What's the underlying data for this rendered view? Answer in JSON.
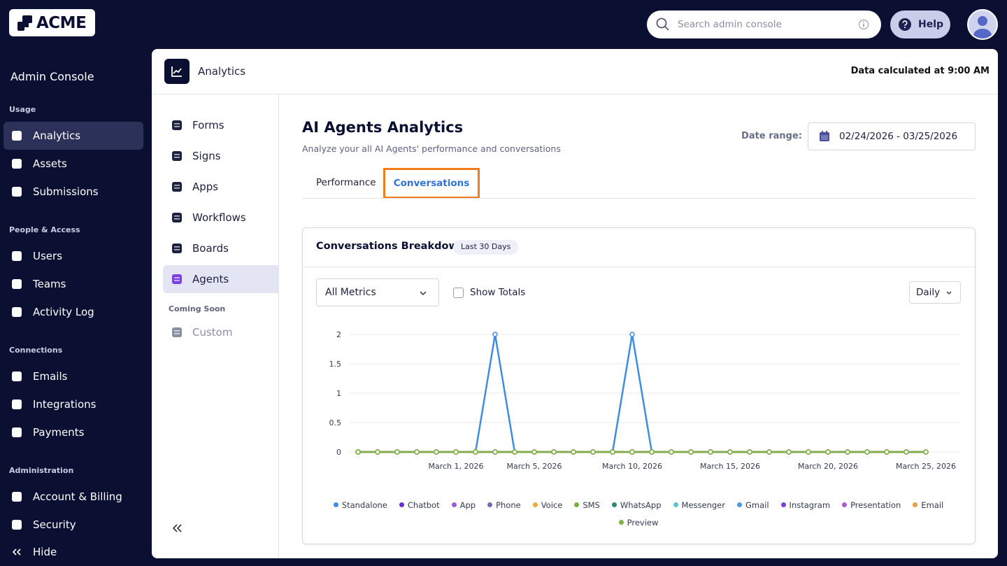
{
  "header": {
    "logo": "ACME",
    "search_placeholder": "Search admin console",
    "help": "Help"
  },
  "sidebar": {
    "title": "Admin Console",
    "sections": [
      {
        "label": "Usage",
        "items": [
          "Analytics",
          "Assets",
          "Submissions"
        ]
      },
      {
        "label": "People & Access",
        "items": [
          "Users",
          "Teams",
          "Activity Log"
        ]
      },
      {
        "label": "Connections",
        "items": [
          "Emails",
          "Integrations",
          "Payments"
        ]
      },
      {
        "label": "Administration",
        "items": [
          "Account & Billing",
          "Security"
        ]
      }
    ],
    "collapse": "Hide"
  },
  "panel": {
    "title": "Analytics",
    "status": "Data calculated at 9:00 AM",
    "subnav": [
      "Forms",
      "Signs",
      "Apps",
      "Workflows",
      "Boards",
      "Agents"
    ],
    "coming_soon": {
      "label": "Coming Soon",
      "items": [
        "Custom"
      ]
    }
  },
  "page": {
    "title": "AI Agents Analytics",
    "subtitle": "Analyze your all AI Agents' performance and conversations",
    "date_range_label": "Date range:",
    "date_range": "02/24/2026 - 03/25/2026",
    "tabs": [
      "Performance",
      "Conversations"
    ]
  },
  "card": {
    "title": "Conversations Breakdown",
    "badge": "Last 30 Days",
    "metric_select": "All Metrics",
    "show_totals": "Show Totals",
    "interval": "Daily"
  },
  "chart_data": {
    "type": "line",
    "x": [
      "2026-02-24",
      "2026-02-25",
      "2026-02-26",
      "2026-02-27",
      "2026-02-28",
      "2026-03-01",
      "2026-03-02",
      "2026-03-03",
      "2026-03-04",
      "2026-03-05",
      "2026-03-06",
      "2026-03-07",
      "2026-03-08",
      "2026-03-09",
      "2026-03-10",
      "2026-03-11",
      "2026-03-12",
      "2026-03-13",
      "2026-03-14",
      "2026-03-15",
      "2026-03-16",
      "2026-03-17",
      "2026-03-18",
      "2026-03-19",
      "2026-03-20",
      "2026-03-21",
      "2026-03-22",
      "2026-03-23",
      "2026-03-24",
      "2026-03-25"
    ],
    "xlim": [
      "2026-02-24",
      "2026-03-25"
    ],
    "xticks": [
      {
        "value": "2026-03-01",
        "label": "March 1, 2026"
      },
      {
        "value": "2026-03-05",
        "label": "March 5, 2026"
      },
      {
        "value": "2026-03-10",
        "label": "March 10, 2026"
      },
      {
        "value": "2026-03-15",
        "label": "March 15, 2026"
      },
      {
        "value": "2026-03-20",
        "label": "March 20, 2026"
      },
      {
        "value": "2026-03-25",
        "label": "March 25, 2026"
      }
    ],
    "ylim": [
      0,
      2
    ],
    "yticks": [
      0,
      0.5,
      1,
      1.5,
      2
    ],
    "grid": true,
    "series": [
      {
        "name": "Standalone",
        "color": "#3d8de0",
        "values": [
          0,
          0,
          0,
          0,
          0,
          0,
          0,
          2,
          0,
          0,
          0,
          0,
          0,
          0,
          2,
          0,
          0,
          0,
          0,
          0,
          0,
          0,
          0,
          0,
          0,
          0,
          0,
          0,
          0,
          0
        ]
      },
      {
        "name": "Chatbot",
        "color": "#6a2fd3",
        "values": [
          0,
          0,
          0,
          0,
          0,
          0,
          0,
          0,
          0,
          0,
          0,
          0,
          0,
          0,
          0,
          0,
          0,
          0,
          0,
          0,
          0,
          0,
          0,
          0,
          0,
          0,
          0,
          0,
          0,
          0
        ]
      },
      {
        "name": "App",
        "color": "#9a5bd8",
        "values": [
          0,
          0,
          0,
          0,
          0,
          0,
          0,
          0,
          0,
          0,
          0,
          0,
          0,
          0,
          0,
          0,
          0,
          0,
          0,
          0,
          0,
          0,
          0,
          0,
          0,
          0,
          0,
          0,
          0,
          0
        ]
      },
      {
        "name": "Phone",
        "color": "#6c70ad",
        "values": [
          0,
          0,
          0,
          0,
          0,
          0,
          0,
          0,
          0,
          0,
          0,
          0,
          0,
          0,
          0,
          0,
          0,
          0,
          0,
          0,
          0,
          0,
          0,
          0,
          0,
          0,
          0,
          0,
          0,
          0
        ]
      },
      {
        "name": "Voice",
        "color": "#f2a93b",
        "values": [
          0,
          0,
          0,
          0,
          0,
          0,
          0,
          0,
          0,
          0,
          0,
          0,
          0,
          0,
          0,
          0,
          0,
          0,
          0,
          0,
          0,
          0,
          0,
          0,
          0,
          0,
          0,
          0,
          0,
          0
        ]
      },
      {
        "name": "SMS",
        "color": "#74b23c",
        "values": [
          0,
          0,
          0,
          0,
          0,
          0,
          0,
          0,
          0,
          0,
          0,
          0,
          0,
          0,
          0,
          0,
          0,
          0,
          0,
          0,
          0,
          0,
          0,
          0,
          0,
          0,
          0,
          0,
          0,
          0
        ]
      },
      {
        "name": "WhatsApp",
        "color": "#2f8a6c",
        "values": [
          0,
          0,
          0,
          0,
          0,
          0,
          0,
          0,
          0,
          0,
          0,
          0,
          0,
          0,
          0,
          0,
          0,
          0,
          0,
          0,
          0,
          0,
          0,
          0,
          0,
          0,
          0,
          0,
          0,
          0
        ]
      },
      {
        "name": "Messenger",
        "color": "#5cbfd8",
        "values": [
          0,
          0,
          0,
          0,
          0,
          0,
          0,
          0,
          0,
          0,
          0,
          0,
          0,
          0,
          0,
          0,
          0,
          0,
          0,
          0,
          0,
          0,
          0,
          0,
          0,
          0,
          0,
          0,
          0,
          0
        ]
      },
      {
        "name": "Gmail",
        "color": "#4a9ae6",
        "values": [
          0,
          0,
          0,
          0,
          0,
          0,
          0,
          0,
          0,
          0,
          0,
          0,
          0,
          0,
          0,
          0,
          0,
          0,
          0,
          0,
          0,
          0,
          0,
          0,
          0,
          0,
          0,
          0,
          0,
          0
        ]
      },
      {
        "name": "Instagram",
        "color": "#7a3be0",
        "values": [
          0,
          0,
          0,
          0,
          0,
          0,
          0,
          0,
          0,
          0,
          0,
          0,
          0,
          0,
          0,
          0,
          0,
          0,
          0,
          0,
          0,
          0,
          0,
          0,
          0,
          0,
          0,
          0,
          0,
          0
        ]
      },
      {
        "name": "Presentation",
        "color": "#a35bd6",
        "values": [
          0,
          0,
          0,
          0,
          0,
          0,
          0,
          0,
          0,
          0,
          0,
          0,
          0,
          0,
          0,
          0,
          0,
          0,
          0,
          0,
          0,
          0,
          0,
          0,
          0,
          0,
          0,
          0,
          0,
          0
        ]
      },
      {
        "name": "Email",
        "color": "#eba23a",
        "values": [
          0,
          0,
          0,
          0,
          0,
          0,
          0,
          0,
          0,
          0,
          0,
          0,
          0,
          0,
          0,
          0,
          0,
          0,
          0,
          0,
          0,
          0,
          0,
          0,
          0,
          0,
          0,
          0,
          0,
          0
        ]
      },
      {
        "name": "Preview",
        "color": "#7cb342",
        "values": [
          0,
          0,
          0,
          0,
          0,
          0,
          0,
          0,
          0,
          0,
          0,
          0,
          0,
          0,
          0,
          0,
          0,
          0,
          0,
          0,
          0,
          0,
          0,
          0,
          0,
          0,
          0,
          0,
          0,
          0
        ]
      }
    ]
  }
}
